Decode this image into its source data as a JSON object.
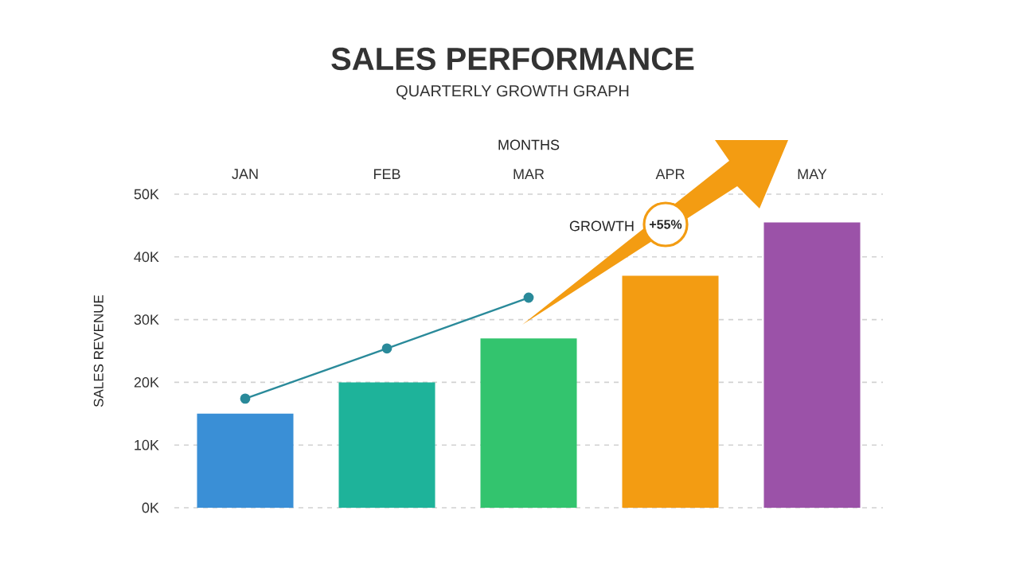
{
  "chart_data": {
    "type": "bar",
    "title": "SALES PERFORMANCE",
    "subtitle": "QUARTERLY GROWTH GRAPH",
    "xlabel": "MONTHS",
    "ylabel": "SALES REVENUE",
    "categories": [
      "JAN",
      "FEB",
      "MAR",
      "APR",
      "MAY"
    ],
    "series": [
      {
        "colors": [
          "#3a8fd6",
          "#1eb39a",
          "#33c46e",
          "#f39c12",
          "#9b52a8"
        ],
        "values": [
          15000,
          20000,
          27000,
          37000,
          45500
        ]
      },
      {
        "type": "line",
        "color": "#2a8a9a",
        "marker": "circle",
        "values": [
          17400,
          25400,
          33500,
          null,
          null
        ]
      }
    ],
    "ylim": [
      0,
      50000
    ],
    "yticks": [
      {
        "value": 0,
        "label": "0K"
      },
      {
        "value": 10000,
        "label": "10K"
      },
      {
        "value": 20000,
        "label": "20K"
      },
      {
        "value": 30000,
        "label": "30K"
      },
      {
        "value": 40000,
        "label": "40K"
      },
      {
        "value": 50000,
        "label": "50K"
      }
    ],
    "grid": "y",
    "annotations": [
      "GROWTH",
      "+55%"
    ]
  }
}
